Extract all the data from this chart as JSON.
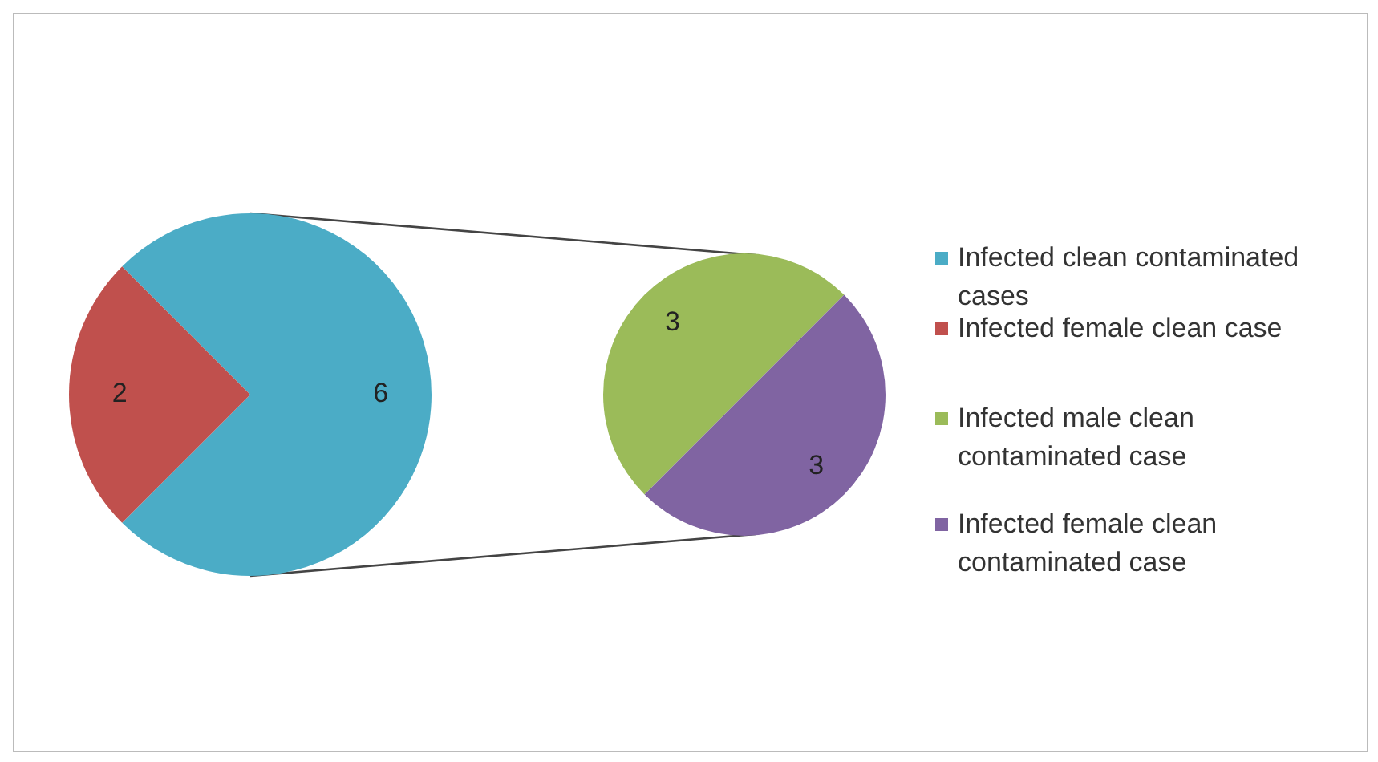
{
  "chart_data": [
    {
      "type": "pie",
      "categories": [
        "Infected clean contaminated cases",
        "Infected female clean case"
      ],
      "values": [
        6,
        2
      ],
      "colors": [
        "#4bacc6",
        "#c0504d"
      ],
      "data_labels": true,
      "legend": "right"
    },
    {
      "type": "pie",
      "categories": [
        "Infected male clean contaminated case",
        "Infected female clean contaminated case"
      ],
      "values": [
        3,
        3
      ],
      "colors": [
        "#9bbb59",
        "#8064a2"
      ],
      "data_labels": true,
      "legend": "right"
    }
  ]
}
